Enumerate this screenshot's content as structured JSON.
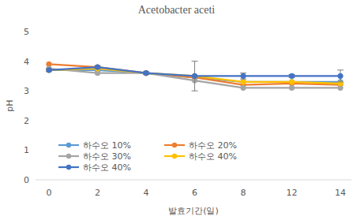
{
  "chart_data": {
    "type": "line",
    "title": "Acetobacter aceti",
    "x_label": "발효기간(일)",
    "y_label": "pH",
    "categories": [
      "0",
      "2",
      "4",
      "6",
      "8",
      "12",
      "14"
    ],
    "ylim": [
      0,
      5
    ],
    "yticks": [
      0,
      1,
      2,
      3,
      4,
      5
    ],
    "grid": false,
    "legend": "bottom-left",
    "marker": "circle",
    "series": [
      {
        "name": "하수오 10%",
        "color": "#5b9bd5",
        "values": [
          3.7,
          3.7,
          3.6,
          3.45,
          3.3,
          3.3,
          3.3
        ]
      },
      {
        "name": "하수오 20%",
        "color": "#ed7d31",
        "values": [
          3.9,
          3.8,
          3.6,
          3.45,
          3.2,
          3.25,
          3.2
        ]
      },
      {
        "name": "하수오 30%",
        "color": "#a5a5a5",
        "values": [
          3.75,
          3.6,
          3.6,
          3.35,
          3.1,
          3.1,
          3.1
        ]
      },
      {
        "name": "하수오 40%",
        "color": "#ffc000",
        "values": [
          3.7,
          3.75,
          3.6,
          3.5,
          3.3,
          3.3,
          3.25
        ]
      },
      {
        "name": "하수오 40%",
        "color": "#4472c4",
        "values": [
          3.7,
          3.8,
          3.6,
          3.5,
          3.5,
          3.5,
          3.5
        ],
        "errors": [
          0.05,
          0.05,
          0.05,
          0.5,
          0.1,
          0.05,
          0.2
        ]
      }
    ]
  }
}
